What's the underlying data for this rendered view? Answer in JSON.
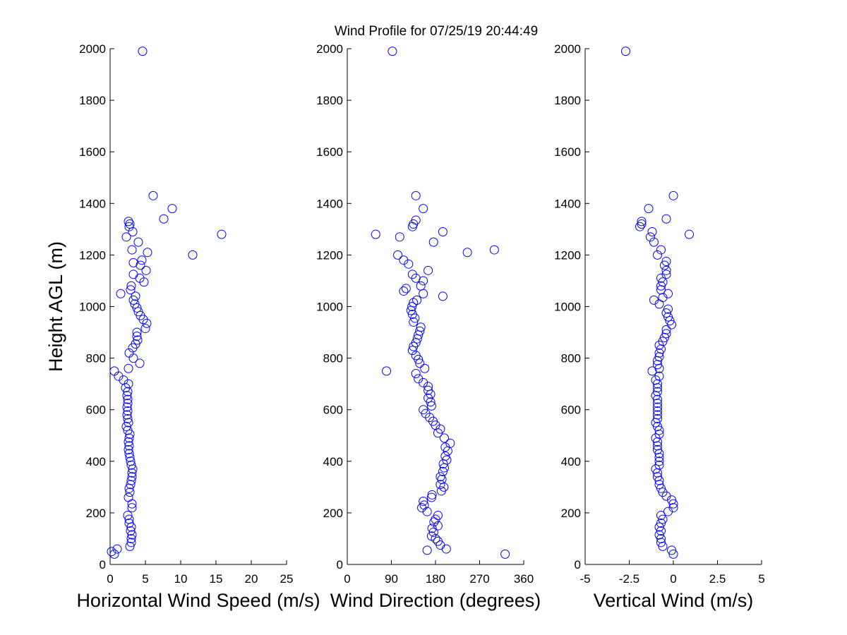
{
  "title": "Wind Profile for  07/25/19 20:44:49",
  "marker_color": "#0000ff",
  "chart_data": [
    {
      "type": "scatter",
      "xlabel": "Horizontal Wind Speed (m/s)",
      "ylabel": "Height AGL (m)",
      "xlim": [
        0,
        25
      ],
      "ylim": [
        0,
        2000
      ],
      "xticks": [
        "0",
        "5",
        "10",
        "15",
        "20",
        "25"
      ],
      "yticks": [
        "0",
        "200",
        "400",
        "600",
        "800",
        "1000",
        "1200",
        "1400",
        "1600",
        "1800",
        "2000"
      ],
      "points": [
        [
          0.2,
          50
        ],
        [
          1.0,
          60
        ],
        [
          0.6,
          40
        ],
        [
          2.8,
          70
        ],
        [
          3.0,
          85
        ],
        [
          3.0,
          100
        ],
        [
          3.1,
          115
        ],
        [
          2.9,
          130
        ],
        [
          3.0,
          145
        ],
        [
          2.7,
          160
        ],
        [
          2.7,
          175
        ],
        [
          2.5,
          190
        ],
        [
          3.1,
          220
        ],
        [
          3.1,
          235
        ],
        [
          2.6,
          260
        ],
        [
          2.8,
          280
        ],
        [
          2.7,
          295
        ],
        [
          2.9,
          310
        ],
        [
          3.0,
          325
        ],
        [
          3.1,
          340
        ],
        [
          3.1,
          355
        ],
        [
          3.2,
          370
        ],
        [
          3.0,
          385
        ],
        [
          2.9,
          400
        ],
        [
          2.8,
          415
        ],
        [
          2.7,
          430
        ],
        [
          2.6,
          445
        ],
        [
          2.7,
          460
        ],
        [
          2.6,
          475
        ],
        [
          2.7,
          490
        ],
        [
          2.8,
          505
        ],
        [
          2.5,
          520
        ],
        [
          2.3,
          535
        ],
        [
          2.6,
          550
        ],
        [
          2.5,
          565
        ],
        [
          2.4,
          580
        ],
        [
          2.5,
          595
        ],
        [
          2.4,
          610
        ],
        [
          2.5,
          625
        ],
        [
          2.5,
          640
        ],
        [
          2.4,
          655
        ],
        [
          2.5,
          670
        ],
        [
          2.2,
          685
        ],
        [
          2.6,
          700
        ],
        [
          1.9,
          715
        ],
        [
          1.2,
          730
        ],
        [
          0.6,
          750
        ],
        [
          2.6,
          760
        ],
        [
          4.2,
          780
        ],
        [
          3.3,
          800
        ],
        [
          2.7,
          820
        ],
        [
          3.2,
          840
        ],
        [
          3.6,
          855
        ],
        [
          3.9,
          870
        ],
        [
          3.8,
          885
        ],
        [
          3.8,
          900
        ],
        [
          5.0,
          915
        ],
        [
          5.2,
          935
        ],
        [
          4.7,
          950
        ],
        [
          4.3,
          965
        ],
        [
          4.0,
          980
        ],
        [
          3.8,
          995
        ],
        [
          3.5,
          1010
        ],
        [
          3.3,
          1025
        ],
        [
          3.6,
          1040
        ],
        [
          1.5,
          1050
        ],
        [
          2.9,
          1065
        ],
        [
          3.0,
          1080
        ],
        [
          4.8,
          1095
        ],
        [
          4.2,
          1110
        ],
        [
          3.3,
          1125
        ],
        [
          5.1,
          1140
        ],
        [
          4.3,
          1160
        ],
        [
          3.3,
          1170
        ],
        [
          4.5,
          1180
        ],
        [
          11.7,
          1200
        ],
        [
          5.3,
          1210
        ],
        [
          3.1,
          1220
        ],
        [
          4.0,
          1250
        ],
        [
          2.3,
          1270
        ],
        [
          15.8,
          1280
        ],
        [
          3.2,
          1290
        ],
        [
          2.7,
          1310
        ],
        [
          2.8,
          1320
        ],
        [
          2.6,
          1330
        ],
        [
          7.6,
          1340
        ],
        [
          8.8,
          1380
        ],
        [
          6.1,
          1430
        ],
        [
          4.6,
          1990
        ]
      ]
    },
    {
      "type": "scatter",
      "xlabel": "Wind Direction (degrees)",
      "ylabel": "",
      "xlim": [
        0,
        360
      ],
      "ylim": [
        0,
        2000
      ],
      "xticks": [
        "0",
        "90",
        "180",
        "270",
        "360"
      ],
      "yticks": [
        "0",
        "200",
        "400",
        "600",
        "800",
        "1000",
        "1200",
        "1400",
        "1600",
        "1800",
        "2000"
      ],
      "points": [
        [
          322,
          40
        ],
        [
          163,
          55
        ],
        [
          202,
          60
        ],
        [
          190,
          75
        ],
        [
          185,
          90
        ],
        [
          180,
          100
        ],
        [
          172,
          110
        ],
        [
          176,
          125
        ],
        [
          173,
          140
        ],
        [
          185,
          150
        ],
        [
          177,
          165
        ],
        [
          180,
          175
        ],
        [
          185,
          190
        ],
        [
          163,
          205
        ],
        [
          152,
          220
        ],
        [
          157,
          230
        ],
        [
          155,
          245
        ],
        [
          172,
          260
        ],
        [
          173,
          270
        ],
        [
          192,
          285
        ],
        [
          197,
          300
        ],
        [
          190,
          310
        ],
        [
          193,
          330
        ],
        [
          190,
          340
        ],
        [
          195,
          360
        ],
        [
          198,
          375
        ],
        [
          196,
          390
        ],
        [
          203,
          405
        ],
        [
          200,
          420
        ],
        [
          205,
          440
        ],
        [
          200,
          455
        ],
        [
          210,
          470
        ],
        [
          198,
          490
        ],
        [
          185,
          510
        ],
        [
          190,
          525
        ],
        [
          180,
          540
        ],
        [
          175,
          555
        ],
        [
          168,
          570
        ],
        [
          160,
          585
        ],
        [
          155,
          600
        ],
        [
          172,
          615
        ],
        [
          170,
          630
        ],
        [
          165,
          645
        ],
        [
          170,
          660
        ],
        [
          165,
          675
        ],
        [
          165,
          690
        ],
        [
          155,
          705
        ],
        [
          145,
          720
        ],
        [
          140,
          740
        ],
        [
          80,
          750
        ],
        [
          158,
          760
        ],
        [
          148,
          780
        ],
        [
          145,
          795
        ],
        [
          140,
          810
        ],
        [
          133,
          830
        ],
        [
          135,
          845
        ],
        [
          140,
          860
        ],
        [
          143,
          875
        ],
        [
          145,
          890
        ],
        [
          148,
          905
        ],
        [
          150,
          920
        ],
        [
          135,
          940
        ],
        [
          138,
          955
        ],
        [
          133,
          970
        ],
        [
          130,
          985
        ],
        [
          132,
          1000
        ],
        [
          135,
          1015
        ],
        [
          142,
          1025
        ],
        [
          195,
          1040
        ],
        [
          155,
          1050
        ],
        [
          115,
          1060
        ],
        [
          120,
          1070
        ],
        [
          150,
          1080
        ],
        [
          155,
          1100
        ],
        [
          140,
          1110
        ],
        [
          133,
          1125
        ],
        [
          165,
          1140
        ],
        [
          125,
          1165
        ],
        [
          115,
          1180
        ],
        [
          103,
          1200
        ],
        [
          245,
          1210
        ],
        [
          300,
          1220
        ],
        [
          176,
          1250
        ],
        [
          107,
          1270
        ],
        [
          58,
          1280
        ],
        [
          195,
          1290
        ],
        [
          133,
          1310
        ],
        [
          135,
          1320
        ],
        [
          140,
          1335
        ],
        [
          155,
          1380
        ],
        [
          140,
          1430
        ],
        [
          92,
          1990
        ]
      ]
    },
    {
      "type": "scatter",
      "xlabel": "Vertical Wind (m/s)",
      "ylabel": "",
      "xlim": [
        -5,
        5
      ],
      "ylim": [
        0,
        2000
      ],
      "xticks": [
        "-5",
        "-2.5",
        "0",
        "2.5",
        "5"
      ],
      "yticks": [
        "0",
        "200",
        "400",
        "600",
        "800",
        "1000",
        "1200",
        "1400",
        "1600",
        "1800",
        "2000"
      ],
      "points": [
        [
          0.0,
          40
        ],
        [
          -0.1,
          55
        ],
        [
          -0.6,
          70
        ],
        [
          -0.7,
          85
        ],
        [
          -0.7,
          100
        ],
        [
          -0.8,
          115
        ],
        [
          -0.7,
          130
        ],
        [
          -0.8,
          145
        ],
        [
          -0.7,
          160
        ],
        [
          -0.6,
          175
        ],
        [
          -0.7,
          190
        ],
        [
          -0.3,
          205
        ],
        [
          0.0,
          220
        ],
        [
          0.0,
          235
        ],
        [
          -0.1,
          250
        ],
        [
          -0.4,
          265
        ],
        [
          -0.6,
          280
        ],
        [
          -0.7,
          295
        ],
        [
          -0.8,
          310
        ],
        [
          -0.8,
          325
        ],
        [
          -0.9,
          340
        ],
        [
          -0.9,
          355
        ],
        [
          -1.0,
          370
        ],
        [
          -0.8,
          385
        ],
        [
          -0.8,
          400
        ],
        [
          -0.8,
          415
        ],
        [
          -0.8,
          430
        ],
        [
          -0.9,
          445
        ],
        [
          -0.9,
          460
        ],
        [
          -0.9,
          475
        ],
        [
          -1.0,
          490
        ],
        [
          -0.8,
          505
        ],
        [
          -0.8,
          520
        ],
        [
          -0.9,
          535
        ],
        [
          -1.0,
          550
        ],
        [
          -0.9,
          565
        ],
        [
          -0.9,
          580
        ],
        [
          -0.9,
          595
        ],
        [
          -0.9,
          610
        ],
        [
          -0.9,
          625
        ],
        [
          -0.9,
          640
        ],
        [
          -1.0,
          655
        ],
        [
          -0.9,
          670
        ],
        [
          -0.9,
          685
        ],
        [
          -0.9,
          700
        ],
        [
          -1.0,
          715
        ],
        [
          -0.8,
          730
        ],
        [
          -1.2,
          750
        ],
        [
          -0.8,
          760
        ],
        [
          -0.9,
          775
        ],
        [
          -0.9,
          790
        ],
        [
          -0.8,
          805
        ],
        [
          -0.8,
          820
        ],
        [
          -0.7,
          835
        ],
        [
          -0.8,
          850
        ],
        [
          -0.6,
          865
        ],
        [
          -0.5,
          880
        ],
        [
          -0.4,
          895
        ],
        [
          -0.4,
          910
        ],
        [
          -0.1,
          930
        ],
        [
          -0.2,
          945
        ],
        [
          -0.3,
          960
        ],
        [
          -0.4,
          975
        ],
        [
          -0.3,
          990
        ],
        [
          -0.8,
          1010
        ],
        [
          -1.1,
          1025
        ],
        [
          -0.6,
          1035
        ],
        [
          -0.3,
          1050
        ],
        [
          -0.7,
          1065
        ],
        [
          -0.7,
          1080
        ],
        [
          -0.6,
          1095
        ],
        [
          -0.7,
          1110
        ],
        [
          -0.4,
          1125
        ],
        [
          -0.4,
          1140
        ],
        [
          -0.5,
          1160
        ],
        [
          -0.4,
          1175
        ],
        [
          -0.9,
          1200
        ],
        [
          -0.7,
          1220
        ],
        [
          -1.1,
          1250
        ],
        [
          -1.3,
          1270
        ],
        [
          0.9,
          1280
        ],
        [
          -1.2,
          1290
        ],
        [
          -1.9,
          1310
        ],
        [
          -1.8,
          1320
        ],
        [
          -1.8,
          1330
        ],
        [
          -0.4,
          1340
        ],
        [
          -1.4,
          1380
        ],
        [
          0.0,
          1430
        ],
        [
          -2.7,
          1990
        ]
      ]
    }
  ]
}
